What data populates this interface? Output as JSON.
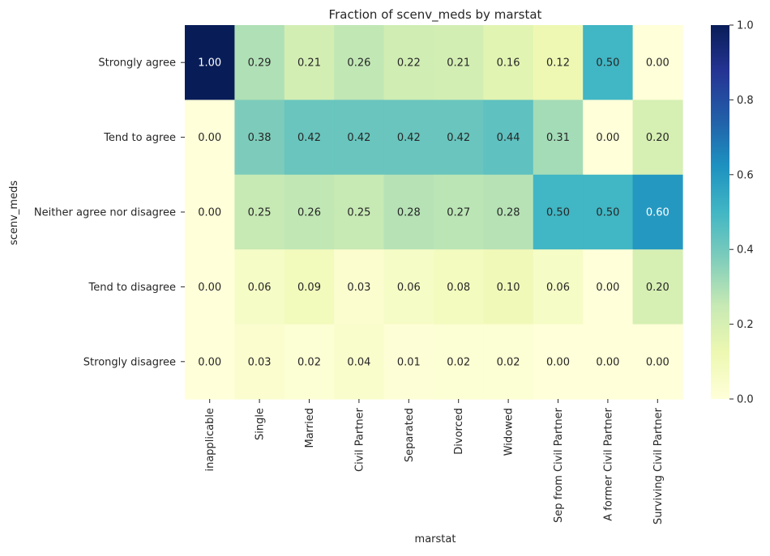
{
  "chart_data": {
    "type": "heatmap",
    "title": "Fraction of scenv_meds by marstat",
    "xlabel": "marstat",
    "ylabel": "scenv_meds",
    "x_categories": [
      "inapplicable",
      "Single",
      "Married",
      "Civil Partner",
      "Separated",
      "Divorced",
      "Widowed",
      "Sep from Civil Partner",
      "A former Civil Partner",
      "Surviving Civil Partner"
    ],
    "y_categories": [
      "Strongly agree",
      "Tend to agree",
      "Neither agree nor disagree",
      "Tend to disagree",
      "Strongly disagree"
    ],
    "values": [
      [
        1.0,
        0.29,
        0.21,
        0.26,
        0.22,
        0.21,
        0.16,
        0.12,
        0.5,
        0.0
      ],
      [
        0.0,
        0.38,
        0.42,
        0.42,
        0.42,
        0.42,
        0.44,
        0.31,
        0.0,
        0.2
      ],
      [
        0.0,
        0.25,
        0.26,
        0.25,
        0.28,
        0.27,
        0.28,
        0.5,
        0.5,
        0.6
      ],
      [
        0.0,
        0.06,
        0.09,
        0.03,
        0.06,
        0.08,
        0.1,
        0.06,
        0.0,
        0.2
      ],
      [
        0.0,
        0.03,
        0.02,
        0.04,
        0.01,
        0.02,
        0.02,
        0.0,
        0.0,
        0.0
      ]
    ],
    "colormap": "YlGnBu",
    "vmin": 0.0,
    "vmax": 1.0,
    "colorbar_ticks": [
      "0.0",
      "0.2",
      "0.4",
      "0.6",
      "0.8",
      "1.0"
    ],
    "annotation_format": "0.00"
  }
}
